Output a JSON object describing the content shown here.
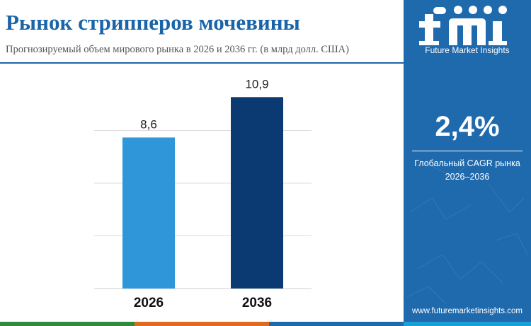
{
  "header": {
    "title": "Рынок стрипперов мочевины",
    "subtitle": "Прогнозируемый объем мирового рынка в 2026 и 2036 гг. (в млрд долл. США)"
  },
  "chart_data": {
    "type": "bar",
    "title": "Рынок стрипперов мочевины",
    "subtitle": "Прогнозируемый объем мирового рынка в 2026 и 2036 гг. (в млрд долл. США)",
    "categories": [
      "2026",
      "2036"
    ],
    "values": [
      8.6,
      10.9
    ],
    "value_labels": [
      "8,6",
      "10,9"
    ],
    "bar_colors": [
      "#2f96d9",
      "#0b3a72"
    ],
    "ylim": [
      0,
      12
    ],
    "grid": true,
    "xlabel": "",
    "ylabel": ""
  },
  "sidebar": {
    "brand_name": "Future Market Insights",
    "logo_letters": "fmi",
    "cagr_value": "2,4%",
    "cagr_label_line1": "Глобальный CAGR рынка",
    "cagr_label_line2": "2026–2036",
    "website": "www.futuremarketinsights.com"
  },
  "colors": {
    "title": "#1a64a8",
    "sidebar_bg": "#1f69ad",
    "bar_2026": "#2f96d9",
    "bar_2036": "#0b3a72",
    "strip": [
      "#2f8a3e",
      "#e06a1e",
      "#1f69ad",
      "#1a9fd8"
    ]
  }
}
